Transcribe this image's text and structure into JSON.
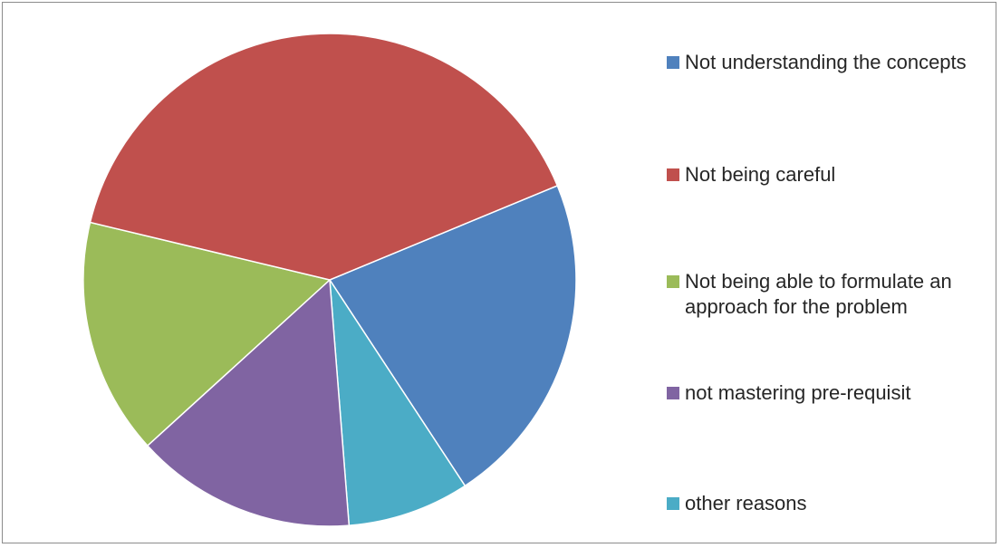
{
  "chart_data": {
    "type": "pie",
    "title": "",
    "start_angle_deg": 67.5,
    "direction": "clockwise",
    "slices": [
      {
        "name": "Not understanding the concepts",
        "value": 22,
        "color": "#4F81BD"
      },
      {
        "name": "other reasons",
        "value": 8,
        "color": "#4BACC6"
      },
      {
        "name": "not mastering pre-requisit",
        "value": 14.5,
        "color": "#8064A2"
      },
      {
        "name": "Not being able to formulate an approach for the problem",
        "value": 15.5,
        "color": "#9BBB59"
      },
      {
        "name": "Not being careful",
        "value": 40,
        "color": "#C0504D"
      }
    ],
    "legend": {
      "position": "right",
      "items": [
        {
          "label": "Not understanding the concepts",
          "color": "#4F81BD"
        },
        {
          "label": "Not being careful",
          "color": "#C0504D"
        },
        {
          "label": "Not being able to formulate an approach for the problem",
          "color": "#9BBB59"
        },
        {
          "label": "not mastering pre-requisit",
          "color": "#8064A2"
        },
        {
          "label": "other reasons",
          "color": "#4BACC6"
        }
      ]
    }
  }
}
